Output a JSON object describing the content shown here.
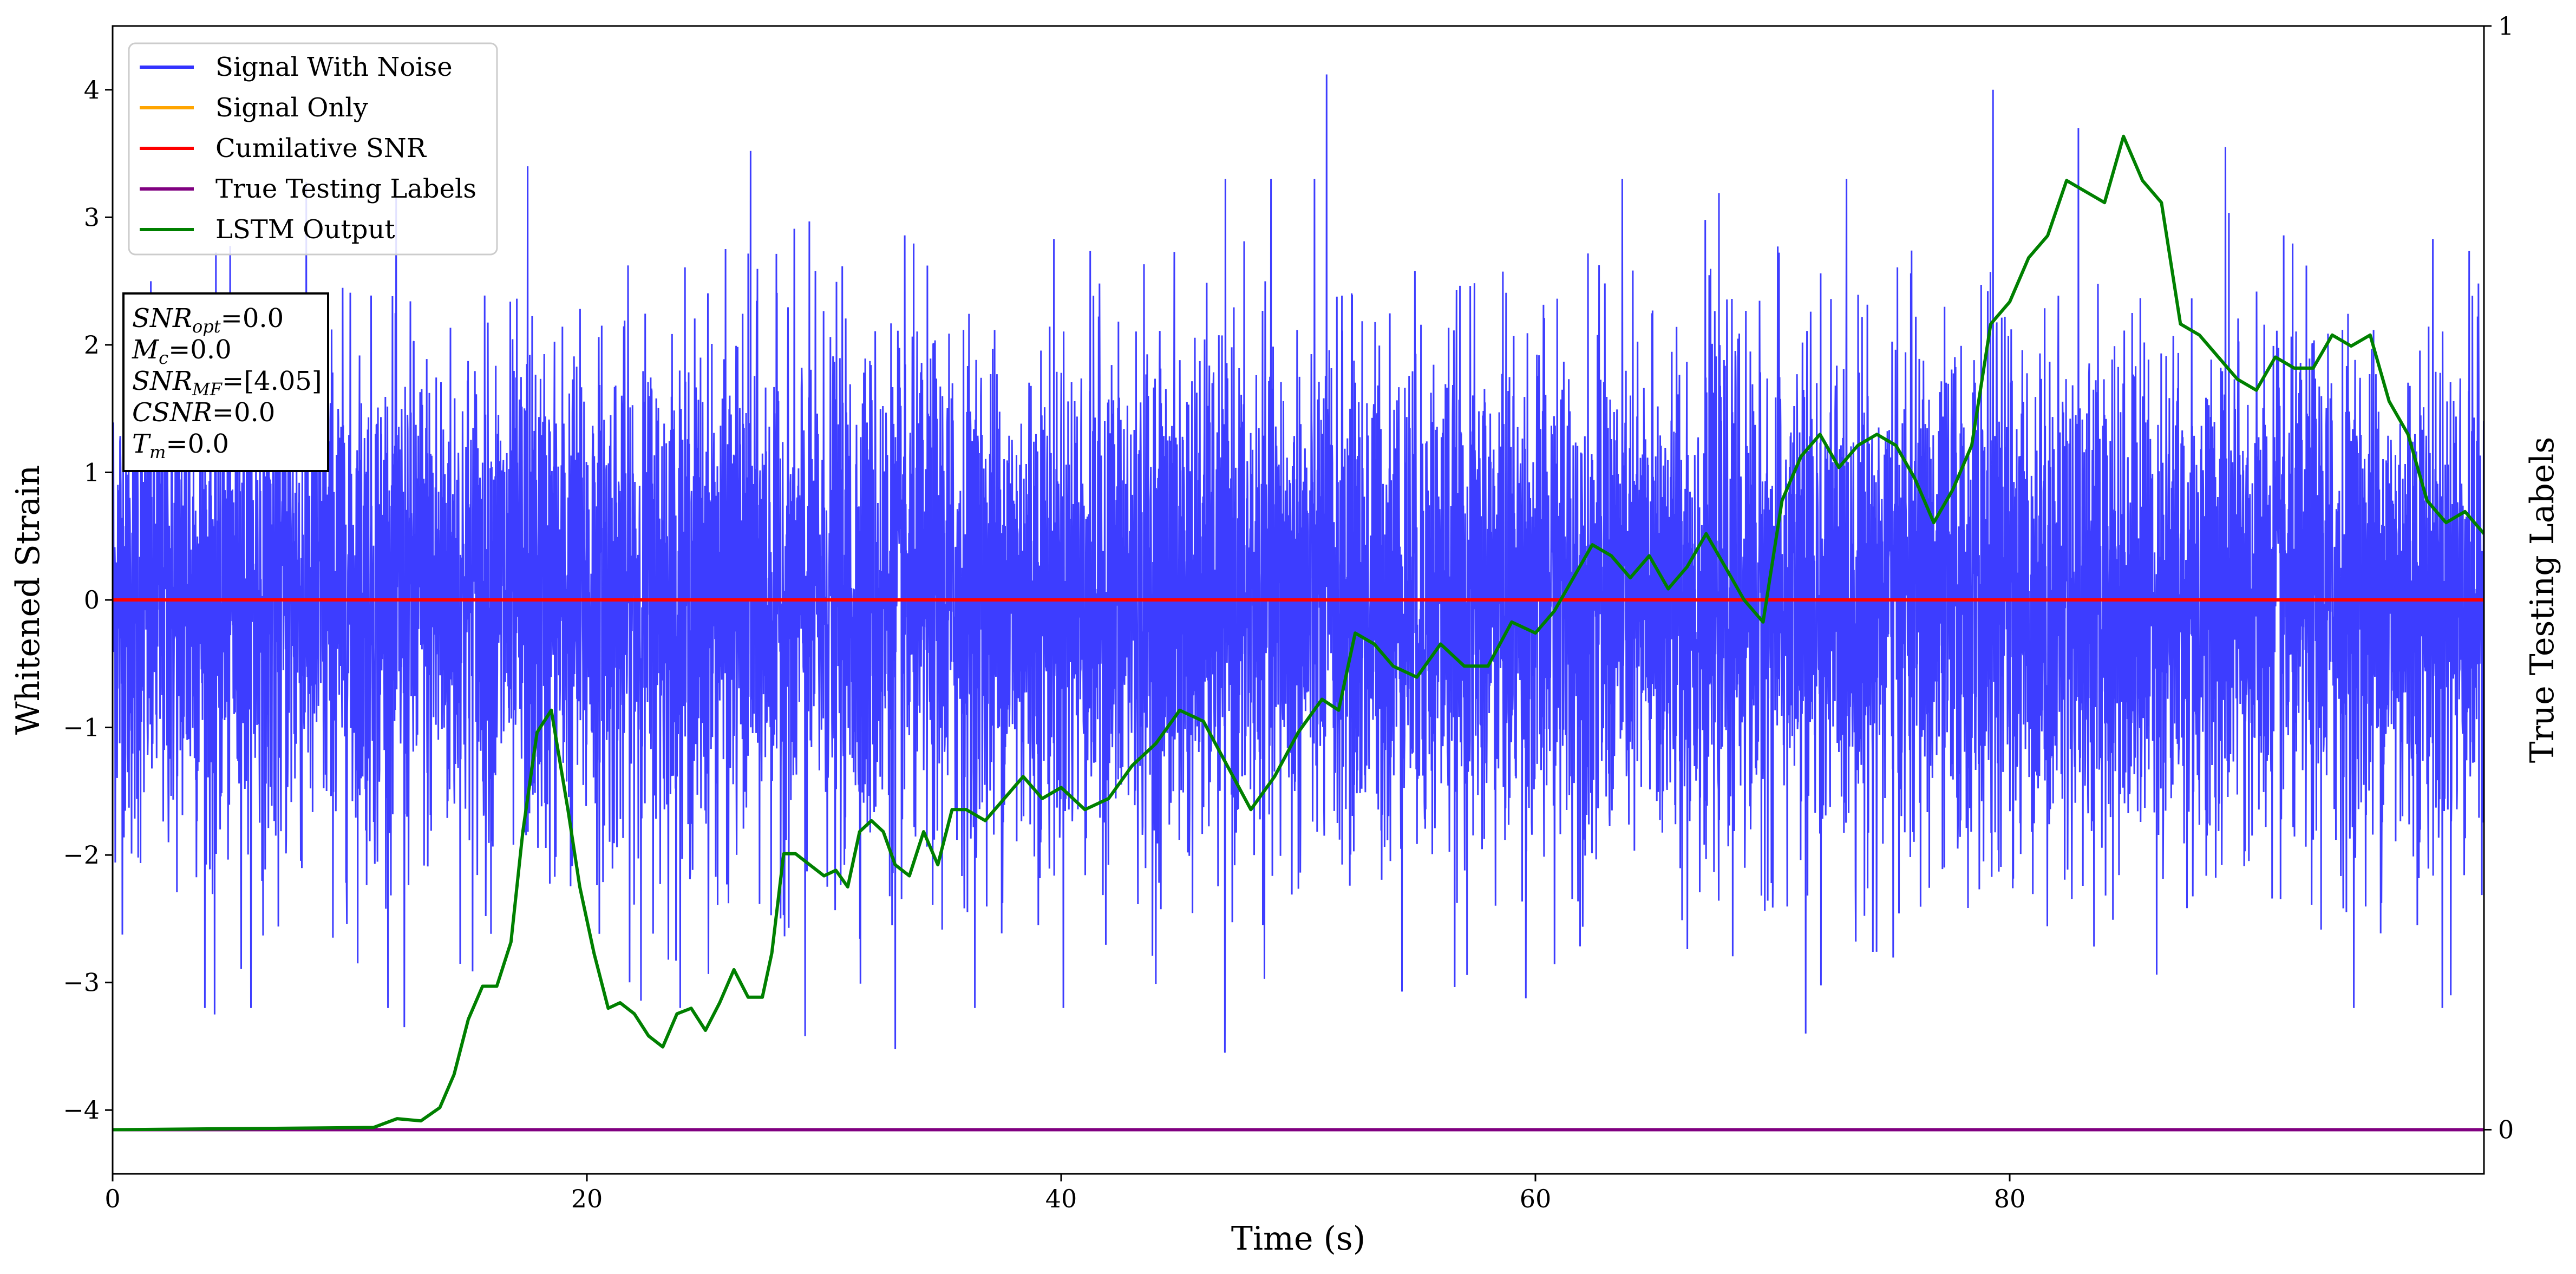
{
  "chart_data": {
    "type": "line",
    "xlabel": "Time (s)",
    "ylabel": "Whitened Strain",
    "ylabel_right": "True Testing Labels",
    "xlim": [
      0,
      100
    ],
    "ylim": [
      -4.5,
      4.5
    ],
    "ylim_right": [
      -0.04,
      1.0
    ],
    "x_ticks": [
      "0",
      "20",
      "40",
      "60",
      "80"
    ],
    "x_tick_values": [
      0,
      20,
      40,
      60,
      80
    ],
    "y_ticks": [
      "−4",
      "−3",
      "−2",
      "−1",
      "0",
      "1",
      "2",
      "3",
      "4"
    ],
    "y_tick_values": [
      -4,
      -3,
      -2,
      -1,
      0,
      1,
      2,
      3,
      4
    ],
    "y_right_ticks": [
      "0",
      "1"
    ],
    "y_right_tick_values": [
      0,
      1
    ],
    "grid": false,
    "legend_position": "top-left",
    "colors": {
      "signal_with_noise": "#3333ff",
      "signal_only": "#ffa500",
      "cumulative_snr": "#ff0000",
      "true_labels": "#800080",
      "lstm_output": "#008000"
    },
    "series": [
      {
        "name": "Signal With Noise",
        "axis": "left",
        "description_stats": {
          "mean": 0.0,
          "std": 1.0,
          "approx_min": -3.55,
          "approx_max": 4.12
        },
        "peaks": [
          [
            4.3,
            -3.25
          ],
          [
            12.3,
            -3.35
          ],
          [
            17.5,
            3.4
          ],
          [
            26.9,
            3.52
          ],
          [
            29.2,
            -3.42
          ],
          [
            33.0,
            -3.52
          ],
          [
            51.2,
            4.12
          ],
          [
            46.9,
            -3.55
          ],
          [
            71.4,
            -3.4
          ],
          [
            79.3,
            4.0
          ],
          [
            82.9,
            3.7
          ],
          [
            89.1,
            3.55
          ],
          [
            98.6,
            -3.1
          ]
        ]
      },
      {
        "name": "Signal Only",
        "axis": "left",
        "x": [
          0,
          100
        ],
        "values": [
          0,
          0
        ]
      },
      {
        "name": "Cumilative SNR",
        "axis": "left",
        "x": [
          0,
          100
        ],
        "values": [
          0,
          0
        ]
      },
      {
        "name": "True Testing Labels",
        "axis": "right",
        "x": [
          0,
          100
        ],
        "values": [
          0,
          0
        ]
      },
      {
        "name": "LSTM Output",
        "axis": "right",
        "x": [
          0,
          11,
          12,
          13,
          13.8,
          14.4,
          15,
          15.6,
          16.2,
          16.8,
          17.3,
          17.9,
          18.5,
          19.2,
          19.7,
          20.3,
          20.9,
          21.4,
          22.0,
          22.6,
          23.2,
          23.8,
          24.4,
          25.0,
          25.6,
          26.2,
          26.8,
          27.4,
          27.8,
          28.3,
          28.8,
          29.4,
          30.0,
          30.5,
          31.0,
          31.5,
          32.0,
          32.5,
          33.0,
          33.6,
          34.2,
          34.8,
          35.4,
          36.0,
          36.8,
          37.6,
          38.4,
          39.2,
          40.0,
          41.0,
          42.0,
          43.0,
          44.0,
          45.0,
          46.0,
          47.0,
          48.0,
          49.0,
          50.0,
          51.0,
          51.7,
          52.4,
          53.2,
          54.0,
          55.0,
          56.0,
          57.0,
          58.0,
          59.0,
          60.0,
          60.8,
          61.6,
          62.4,
          63.2,
          64.0,
          64.8,
          65.6,
          66.4,
          67.2,
          68.0,
          68.8,
          69.6,
          70.4,
          71.2,
          72.0,
          72.8,
          73.6,
          74.4,
          75.2,
          76.0,
          76.8,
          77.6,
          78.4,
          79.2,
          80.0,
          80.8,
          81.6,
          82.4,
          83.2,
          84.0,
          84.8,
          85.6,
          86.4,
          87.2,
          88.0,
          88.8,
          89.6,
          90.4,
          91.2,
          92.0,
          92.8,
          93.6,
          94.4,
          95.2,
          96.0,
          96.8,
          97.6,
          98.4,
          99.2,
          100
        ],
        "values": [
          0.0,
          0.002,
          0.01,
          0.008,
          0.02,
          0.05,
          0.1,
          0.13,
          0.13,
          0.17,
          0.27,
          0.36,
          0.38,
          0.29,
          0.22,
          0.16,
          0.11,
          0.115,
          0.105,
          0.085,
          0.075,
          0.105,
          0.11,
          0.09,
          0.115,
          0.145,
          0.12,
          0.12,
          0.16,
          0.25,
          0.25,
          0.24,
          0.23,
          0.235,
          0.22,
          0.27,
          0.28,
          0.27,
          0.24,
          0.23,
          0.27,
          0.24,
          0.29,
          0.29,
          0.28,
          0.3,
          0.32,
          0.3,
          0.31,
          0.29,
          0.3,
          0.33,
          0.35,
          0.38,
          0.37,
          0.33,
          0.29,
          0.32,
          0.36,
          0.39,
          0.38,
          0.45,
          0.44,
          0.42,
          0.41,
          0.44,
          0.42,
          0.42,
          0.46,
          0.45,
          0.47,
          0.5,
          0.53,
          0.52,
          0.5,
          0.52,
          0.49,
          0.51,
          0.54,
          0.51,
          0.48,
          0.46,
          0.57,
          0.61,
          0.63,
          0.6,
          0.62,
          0.63,
          0.62,
          0.59,
          0.55,
          0.58,
          0.62,
          0.73,
          0.75,
          0.79,
          0.81,
          0.86,
          0.85,
          0.84,
          0.9,
          0.86,
          0.84,
          0.73,
          0.72,
          0.7,
          0.68,
          0.67,
          0.7,
          0.69,
          0.69,
          0.72,
          0.71,
          0.72,
          0.66,
          0.63,
          0.57,
          0.55,
          0.56,
          0.54
        ]
      }
    ],
    "annotation": {
      "lines": [
        {
          "base": "SNR",
          "sub": "opt",
          "value": "=0.0"
        },
        {
          "base": "M",
          "sub": "c",
          "value": "=0.0"
        },
        {
          "base": "SNR",
          "sub": "MF",
          "value": "=[4.05]"
        },
        {
          "base": "CSNR",
          "sub": "",
          "value": "=0.0"
        },
        {
          "base": "T",
          "sub": "m",
          "value": "=0.0"
        }
      ]
    }
  }
}
